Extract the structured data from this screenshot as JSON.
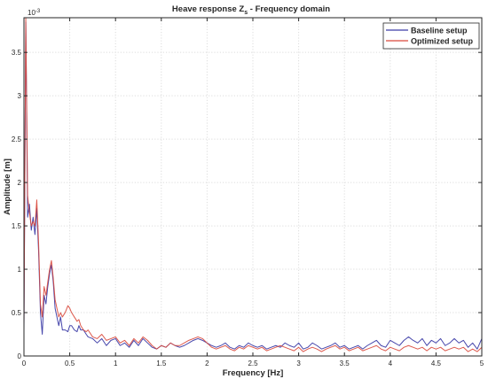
{
  "chart_data": {
    "type": "line",
    "title": "Heave response Z",
    "title_subscript": "s",
    "title_suffix": " - Frequency domain",
    "xlabel": "Frequency [Hz]",
    "ylabel": "Amplitude [m]",
    "y_exponent_label": "10",
    "y_exponent_power": "-3",
    "xlim": [
      0,
      5
    ],
    "ylim": [
      0,
      3.9
    ],
    "grid": true,
    "legend_position": "top-right",
    "x_ticks": [
      0,
      0.5,
      1,
      1.5,
      2,
      2.5,
      3,
      3.5,
      4,
      4.5,
      5
    ],
    "x_tick_labels": [
      "0",
      "0.5",
      "1",
      "1.5",
      "2",
      "2.5",
      "3",
      "3.5",
      "4",
      "4.5",
      "5"
    ],
    "y_ticks": [
      0,
      0.5,
      1,
      1.5,
      2,
      2.5,
      3,
      3.5
    ],
    "y_tick_labels": [
      "0",
      "0.5",
      "1",
      "1.5",
      "2",
      "2.5",
      "3",
      "3.5"
    ],
    "series": [
      {
        "name": "Baseline setup",
        "color": "#3c3ca6",
        "x": [
          0,
          0.02,
          0.04,
          0.06,
          0.08,
          0.1,
          0.12,
          0.14,
          0.16,
          0.18,
          0.2,
          0.22,
          0.24,
          0.26,
          0.28,
          0.3,
          0.32,
          0.34,
          0.36,
          0.38,
          0.4,
          0.42,
          0.45,
          0.48,
          0.5,
          0.52,
          0.55,
          0.58,
          0.6,
          0.62,
          0.65,
          0.68,
          0.7,
          0.75,
          0.8,
          0.85,
          0.9,
          0.95,
          1.0,
          1.05,
          1.1,
          1.15,
          1.2,
          1.25,
          1.3,
          1.35,
          1.4,
          1.45,
          1.5,
          1.55,
          1.6,
          1.65,
          1.7,
          1.75,
          1.8,
          1.85,
          1.9,
          1.95,
          2.0,
          2.05,
          2.1,
          2.15,
          2.2,
          2.25,
          2.3,
          2.35,
          2.4,
          2.45,
          2.5,
          2.55,
          2.6,
          2.65,
          2.7,
          2.75,
          2.8,
          2.85,
          2.9,
          2.95,
          3.0,
          3.05,
          3.1,
          3.15,
          3.2,
          3.25,
          3.3,
          3.35,
          3.4,
          3.45,
          3.5,
          3.55,
          3.6,
          3.65,
          3.7,
          3.75,
          3.8,
          3.85,
          3.9,
          3.95,
          4.0,
          4.05,
          4.1,
          4.15,
          4.2,
          4.25,
          4.3,
          4.35,
          4.4,
          4.45,
          4.5,
          4.55,
          4.6,
          4.65,
          4.7,
          4.75,
          4.8,
          4.85,
          4.9,
          4.95,
          5.0
        ],
        "y": [
          0.3,
          3.85,
          1.6,
          1.75,
          1.45,
          1.6,
          1.4,
          1.7,
          1.2,
          0.5,
          0.25,
          0.7,
          0.6,
          0.8,
          0.95,
          1.05,
          0.85,
          0.55,
          0.45,
          0.35,
          0.45,
          0.3,
          0.3,
          0.28,
          0.35,
          0.35,
          0.3,
          0.28,
          0.35,
          0.3,
          0.3,
          0.25,
          0.22,
          0.2,
          0.15,
          0.2,
          0.12,
          0.18,
          0.2,
          0.12,
          0.15,
          0.1,
          0.18,
          0.12,
          0.2,
          0.15,
          0.1,
          0.08,
          0.12,
          0.1,
          0.15,
          0.12,
          0.1,
          0.12,
          0.15,
          0.18,
          0.2,
          0.18,
          0.15,
          0.12,
          0.1,
          0.12,
          0.15,
          0.1,
          0.08,
          0.12,
          0.1,
          0.15,
          0.12,
          0.1,
          0.12,
          0.08,
          0.1,
          0.12,
          0.1,
          0.15,
          0.12,
          0.1,
          0.15,
          0.08,
          0.1,
          0.15,
          0.12,
          0.08,
          0.1,
          0.12,
          0.15,
          0.1,
          0.12,
          0.08,
          0.1,
          0.12,
          0.08,
          0.12,
          0.15,
          0.18,
          0.12,
          0.1,
          0.18,
          0.15,
          0.12,
          0.18,
          0.22,
          0.18,
          0.15,
          0.2,
          0.12,
          0.18,
          0.15,
          0.2,
          0.12,
          0.15,
          0.2,
          0.15,
          0.18,
          0.1,
          0.15,
          0.08,
          0.2
        ]
      },
      {
        "name": "Optimized setup",
        "color": "#d9473a",
        "x": [
          0,
          0.02,
          0.04,
          0.06,
          0.08,
          0.1,
          0.12,
          0.14,
          0.16,
          0.18,
          0.2,
          0.22,
          0.24,
          0.26,
          0.28,
          0.3,
          0.32,
          0.34,
          0.36,
          0.38,
          0.4,
          0.42,
          0.45,
          0.48,
          0.5,
          0.52,
          0.55,
          0.58,
          0.6,
          0.62,
          0.65,
          0.68,
          0.7,
          0.75,
          0.8,
          0.85,
          0.9,
          0.95,
          1.0,
          1.05,
          1.1,
          1.15,
          1.2,
          1.25,
          1.3,
          1.35,
          1.4,
          1.45,
          1.5,
          1.55,
          1.6,
          1.65,
          1.7,
          1.75,
          1.8,
          1.85,
          1.9,
          1.95,
          2.0,
          2.05,
          2.1,
          2.15,
          2.2,
          2.25,
          2.3,
          2.35,
          2.4,
          2.45,
          2.5,
          2.55,
          2.6,
          2.65,
          2.7,
          2.75,
          2.8,
          2.85,
          2.9,
          2.95,
          3.0,
          3.05,
          3.1,
          3.15,
          3.2,
          3.25,
          3.3,
          3.35,
          3.4,
          3.45,
          3.5,
          3.55,
          3.6,
          3.65,
          3.7,
          3.75,
          3.8,
          3.85,
          3.9,
          3.95,
          4.0,
          4.05,
          4.1,
          4.15,
          4.2,
          4.25,
          4.3,
          4.35,
          4.4,
          4.45,
          4.5,
          4.55,
          4.6,
          4.65,
          4.7,
          4.75,
          4.8,
          4.85,
          4.9,
          4.95,
          5.0
        ],
        "y": [
          0.35,
          3.9,
          1.85,
          1.65,
          1.5,
          1.55,
          1.5,
          1.8,
          1.3,
          0.6,
          0.45,
          0.8,
          0.7,
          0.85,
          1.0,
          1.1,
          0.9,
          0.65,
          0.55,
          0.45,
          0.5,
          0.45,
          0.5,
          0.58,
          0.55,
          0.5,
          0.45,
          0.4,
          0.42,
          0.35,
          0.3,
          0.28,
          0.3,
          0.22,
          0.2,
          0.25,
          0.18,
          0.2,
          0.22,
          0.15,
          0.18,
          0.12,
          0.2,
          0.15,
          0.22,
          0.18,
          0.12,
          0.08,
          0.12,
          0.1,
          0.15,
          0.12,
          0.12,
          0.15,
          0.18,
          0.2,
          0.22,
          0.2,
          0.15,
          0.1,
          0.08,
          0.1,
          0.12,
          0.08,
          0.06,
          0.1,
          0.08,
          0.12,
          0.1,
          0.08,
          0.1,
          0.06,
          0.08,
          0.1,
          0.12,
          0.1,
          0.08,
          0.06,
          0.1,
          0.05,
          0.08,
          0.1,
          0.08,
          0.05,
          0.08,
          0.1,
          0.12,
          0.08,
          0.1,
          0.06,
          0.08,
          0.1,
          0.06,
          0.08,
          0.1,
          0.12,
          0.08,
          0.06,
          0.1,
          0.08,
          0.06,
          0.1,
          0.12,
          0.1,
          0.08,
          0.1,
          0.06,
          0.1,
          0.08,
          0.1,
          0.06,
          0.08,
          0.1,
          0.08,
          0.1,
          0.05,
          0.08,
          0.05,
          0.1
        ]
      }
    ]
  }
}
